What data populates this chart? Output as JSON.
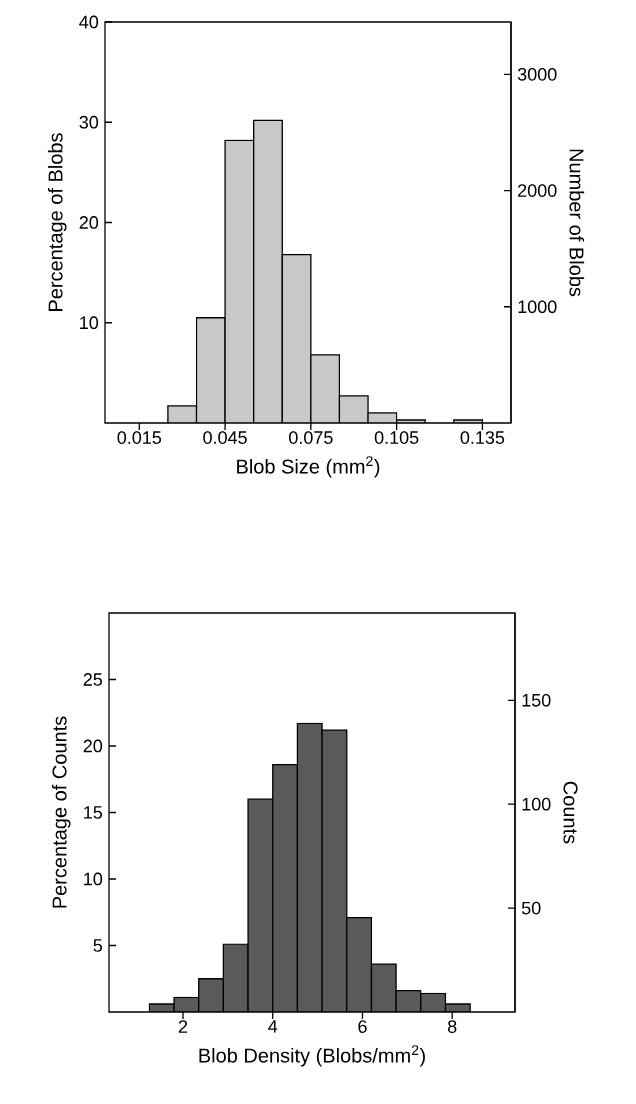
{
  "chart_data": [
    {
      "type": "histogram",
      "xlabel": "Blob Size (mm$^{2}$)",
      "ylabel": "Percentage of Blobs",
      "y2label": "Number of Blobs",
      "bins": [
        0.025,
        0.035,
        0.045,
        0.055,
        0.065,
        0.075,
        0.085,
        0.095,
        0.105,
        0.115,
        0.125,
        0.135
      ],
      "values": [
        1.7,
        10.5,
        28.2,
        30.2,
        16.8,
        6.8,
        2.7,
        1.0,
        0.3,
        null,
        0.3
      ],
      "color": "#c8c8c8",
      "xlim": [
        0.003,
        0.145
      ],
      "xticks": [
        0.015,
        0.045,
        0.075,
        0.105,
        0.135
      ],
      "ylim": [
        0,
        40
      ],
      "yticks": [
        10,
        20,
        30,
        40
      ],
      "y2lim": [
        0,
        3450
      ],
      "y2ticks": [
        1000,
        2000,
        3000
      ]
    },
    {
      "type": "histogram",
      "xlabel": "Blob Density (Blobs/mm$^{2}$)",
      "ylabel": "Percentage of Counts",
      "y2label": "Counts",
      "bins": [
        1.25,
        1.8,
        2.35,
        2.9,
        3.45,
        4.0,
        4.55,
        5.1,
        5.65,
        6.2,
        6.75,
        7.3,
        7.85,
        8.4
      ],
      "values": [
        0.6,
        1.1,
        2.5,
        5.1,
        16.0,
        18.6,
        21.7,
        21.2,
        7.1,
        3.6,
        1.6,
        1.4,
        0.6
      ],
      "color": "#5a5a5a",
      "xlim": [
        0.35,
        9.4
      ],
      "xticks": [
        2,
        4,
        6,
        8
      ],
      "ylim": [
        0,
        30
      ],
      "yticks": [
        5,
        10,
        15,
        20,
        25
      ],
      "y2lim": [
        0,
        192
      ],
      "y2ticks": [
        50,
        100,
        150
      ]
    }
  ]
}
